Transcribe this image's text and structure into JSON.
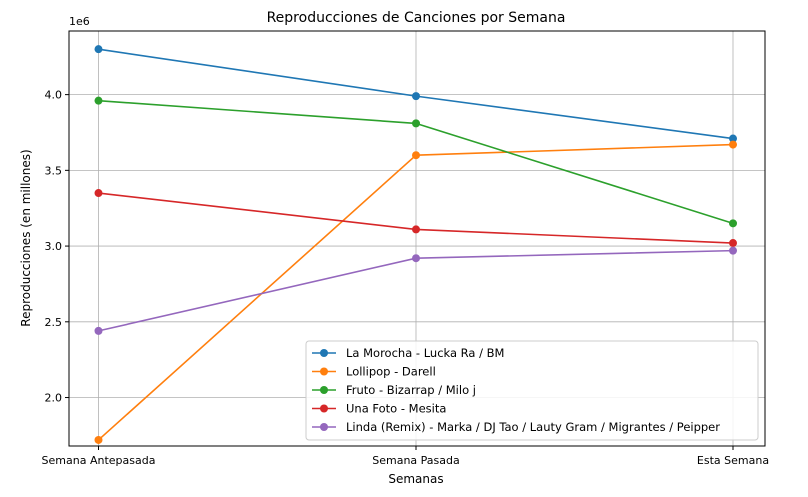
{
  "chart_data": {
    "type": "line",
    "title": "Reproducciones de Canciones por Semana",
    "xlabel": "Semanas",
    "ylabel": "Reproducciones (en millones)",
    "offset_label": "1e6",
    "categories": [
      "Semana Antepasada",
      "Semana Pasada",
      "Esta Semana"
    ],
    "ylim": [
      1.68,
      4.42
    ],
    "yticks": [
      2.0,
      2.5,
      3.0,
      3.5,
      4.0
    ],
    "ytick_labels": [
      "2.0",
      "2.5",
      "3.0",
      "3.5",
      "4.0"
    ],
    "grid": true,
    "legend_position": "lower right",
    "series": [
      {
        "name": "La Morocha - Lucka Ra / BM",
        "color": "#1f77b4",
        "values": [
          4.3,
          3.99,
          3.71
        ]
      },
      {
        "name": "Lollipop - Darell",
        "color": "#ff7f0e",
        "values": [
          1.72,
          3.6,
          3.67
        ]
      },
      {
        "name": "Fruto - Bizarrap / Milo j",
        "color": "#2ca02c",
        "values": [
          3.96,
          3.81,
          3.15
        ]
      },
      {
        "name": "Una Foto - Mesita",
        "color": "#d62728",
        "values": [
          3.35,
          3.11,
          3.02
        ]
      },
      {
        "name": "Linda (Remix) - Marka / DJ Tao / Lauty Gram / Migrantes / Peipper",
        "color": "#9467bd",
        "values": [
          2.44,
          2.92,
          2.97
        ]
      }
    ]
  }
}
